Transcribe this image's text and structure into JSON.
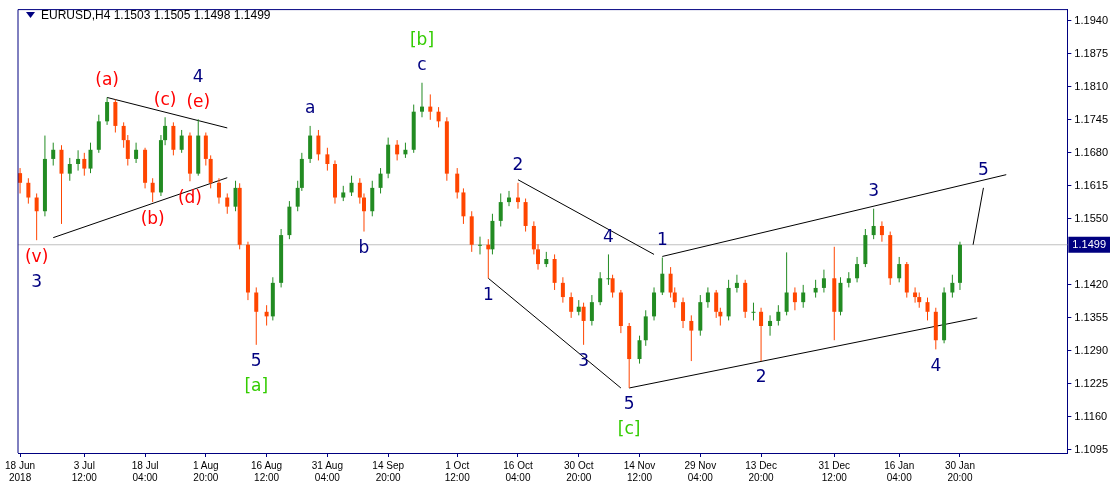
{
  "chart_data": {
    "type": "candlestick",
    "title": "EURUSD,H4  1.1503 1.1505 1.1498 1.1499",
    "x": [
      "2018-06-18",
      "2018-06-20",
      "2018-06-22",
      "2018-06-24",
      "2018-06-26",
      "2018-06-28",
      "2018-06-30",
      "2018-07-02",
      "2018-07-03T12:00",
      "2018-07-05",
      "2018-07-07",
      "2018-07-09",
      "2018-07-11",
      "2018-07-13",
      "2018-07-14",
      "2018-07-16",
      "2018-07-18T04:00",
      "2018-07-20",
      "2018-07-22",
      "2018-07-23",
      "2018-07-25",
      "2018-07-27",
      "2018-07-29",
      "2018-07-31",
      "2018-08-01T20:00",
      "2018-08-03",
      "2018-08-05",
      "2018-08-07",
      "2018-08-09",
      "2018-08-10",
      "2018-08-12",
      "2018-08-14",
      "2018-08-16T12:00",
      "2018-08-18",
      "2018-08-20",
      "2018-08-22",
      "2018-08-24",
      "2018-08-25",
      "2018-08-27",
      "2018-08-29",
      "2018-08-31T04:00",
      "2018-09-02",
      "2018-09-04",
      "2018-09-06",
      "2018-09-08",
      "2018-09-09",
      "2018-09-11",
      "2018-09-13",
      "2018-09-14T20:00",
      "2018-09-17",
      "2018-09-19",
      "2018-09-21",
      "2018-09-23",
      "2018-09-25",
      "2018-09-27",
      "2018-09-29",
      "2018-10-01T12:00",
      "2018-10-03",
      "2018-10-05",
      "2018-10-07",
      "2018-10-09",
      "2018-10-10",
      "2018-10-12",
      "2018-10-14",
      "2018-10-16T04:00",
      "2018-10-18",
      "2018-10-20",
      "2018-10-21",
      "2018-10-23",
      "2018-10-25",
      "2018-10-27",
      "2018-10-29",
      "2018-10-30T20:00",
      "2018-11-01",
      "2018-11-03",
      "2018-11-05",
      "2018-11-07",
      "2018-11-08",
      "2018-11-10",
      "2018-11-12",
      "2018-11-14T12:00",
      "2018-11-16",
      "2018-11-18",
      "2018-11-20",
      "2018-11-22",
      "2018-11-23",
      "2018-11-25",
      "2018-11-27",
      "2018-11-29T04:00",
      "2018-12-01",
      "2018-12-03",
      "2018-12-04",
      "2018-12-06",
      "2018-12-08",
      "2018-12-10",
      "2018-12-12",
      "2018-12-13T20:00",
      "2018-12-16",
      "2018-12-18",
      "2018-12-20",
      "2018-12-22",
      "2018-12-24",
      "2018-12-27",
      "2018-12-29",
      "2018-12-31T12:00",
      "2019-01-02",
      "2019-01-04",
      "2019-01-06",
      "2019-01-08",
      "2019-01-10",
      "2019-01-12",
      "2019-01-14",
      "2019-01-16T04:00",
      "2019-01-18",
      "2019-01-20",
      "2019-01-21",
      "2019-01-23",
      "2019-01-25",
      "2019-01-27",
      "2019-01-29",
      "2019-01-30T20:00"
    ],
    "ohlc": [
      [
        1.164,
        1.165,
        1.16,
        1.1621
      ],
      [
        1.1621,
        1.163,
        1.158,
        1.1592
      ],
      [
        1.1592,
        1.16,
        1.1508,
        1.1565
      ],
      [
        1.1565,
        1.1714,
        1.1555,
        1.1668
      ],
      [
        1.1668,
        1.17,
        1.1655,
        1.1686
      ],
      [
        1.1686,
        1.1695,
        1.154,
        1.1639
      ],
      [
        1.1639,
        1.167,
        1.1625,
        1.1658
      ],
      [
        1.1658,
        1.1685,
        1.1645,
        1.1668
      ],
      [
        1.1668,
        1.168,
        1.1635,
        1.1649
      ],
      [
        1.1649,
        1.17,
        1.164,
        1.1686
      ],
      [
        1.1686,
        1.1755,
        1.168,
        1.1742
      ],
      [
        1.1742,
        1.1789,
        1.1735,
        1.178
      ],
      [
        1.178,
        1.1785,
        1.172,
        1.1733
      ],
      [
        1.1733,
        1.174,
        1.169,
        1.1705
      ],
      [
        1.1705,
        1.1715,
        1.1655,
        1.1668
      ],
      [
        1.1668,
        1.17,
        1.166,
        1.1686
      ],
      [
        1.1686,
        1.169,
        1.161,
        1.1621
      ],
      [
        1.1621,
        1.163,
        1.1583,
        1.1602
      ],
      [
        1.1602,
        1.1715,
        1.1595,
        1.1705
      ],
      [
        1.1705,
        1.175,
        1.1695,
        1.1733
      ],
      [
        1.1733,
        1.174,
        1.1675,
        1.1686
      ],
      [
        1.1686,
        1.1725,
        1.168,
        1.1714
      ],
      [
        1.1714,
        1.172,
        1.1624,
        1.1639
      ],
      [
        1.1639,
        1.1746,
        1.1635,
        1.1714
      ],
      [
        1.1714,
        1.172,
        1.1655,
        1.1668
      ],
      [
        1.1668,
        1.1675,
        1.161,
        1.1621
      ],
      [
        1.1621,
        1.163,
        1.158,
        1.1592
      ],
      [
        1.1592,
        1.16,
        1.156,
        1.1574
      ],
      [
        1.1574,
        1.1625,
        1.1565,
        1.1611
      ],
      [
        1.1611,
        1.162,
        1.149,
        1.1499
      ],
      [
        1.1499,
        1.1505,
        1.139,
        1.1405
      ],
      [
        1.1405,
        1.1415,
        1.1302,
        1.1367
      ],
      [
        1.1367,
        1.138,
        1.134,
        1.1358
      ],
      [
        1.1358,
        1.1435,
        1.135,
        1.1424
      ],
      [
        1.1424,
        1.153,
        1.1415,
        1.1518
      ],
      [
        1.1518,
        1.1585,
        1.151,
        1.1574
      ],
      [
        1.1574,
        1.1625,
        1.1565,
        1.1611
      ],
      [
        1.1611,
        1.168,
        1.1605,
        1.1668
      ],
      [
        1.1668,
        1.1733,
        1.166,
        1.1714
      ],
      [
        1.1714,
        1.1725,
        1.1665,
        1.1677
      ],
      [
        1.1677,
        1.169,
        1.1645,
        1.1658
      ],
      [
        1.1658,
        1.1665,
        1.158,
        1.1592
      ],
      [
        1.1592,
        1.1615,
        1.1585,
        1.1602
      ],
      [
        1.1602,
        1.1635,
        1.1595,
        1.1621
      ],
      [
        1.1621,
        1.163,
        1.158,
        1.1592
      ],
      [
        1.1592,
        1.16,
        1.1525,
        1.1565
      ],
      [
        1.1565,
        1.1625,
        1.1555,
        1.1611
      ],
      [
        1.1611,
        1.165,
        1.16,
        1.1639
      ],
      [
        1.1639,
        1.171,
        1.163,
        1.1696
      ],
      [
        1.1696,
        1.1705,
        1.1665,
        1.1677
      ],
      [
        1.1677,
        1.17,
        1.167,
        1.1686
      ],
      [
        1.1686,
        1.1775,
        1.168,
        1.1761
      ],
      [
        1.1761,
        1.1818,
        1.175,
        1.1771
      ],
      [
        1.1771,
        1.1795,
        1.1745,
        1.1761
      ],
      [
        1.1761,
        1.177,
        1.173,
        1.1742
      ],
      [
        1.1742,
        1.175,
        1.1625,
        1.1639
      ],
      [
        1.1639,
        1.165,
        1.159,
        1.1602
      ],
      [
        1.1602,
        1.161,
        1.154,
        1.1555
      ],
      [
        1.1555,
        1.1565,
        1.1485,
        1.1499
      ],
      [
        1.1499,
        1.1515,
        1.148,
        1.1499
      ],
      [
        1.1499,
        1.151,
        1.1433,
        1.149
      ],
      [
        1.149,
        1.156,
        1.148,
        1.1546
      ],
      [
        1.1546,
        1.16,
        1.1535,
        1.1583
      ],
      [
        1.1583,
        1.1605,
        1.1575,
        1.1592
      ],
      [
        1.1592,
        1.1621,
        1.157,
        1.1583
      ],
      [
        1.1583,
        1.159,
        1.1525,
        1.1536
      ],
      [
        1.1536,
        1.1545,
        1.148,
        1.149
      ],
      [
        1.149,
        1.15,
        1.145,
        1.1461
      ],
      [
        1.1461,
        1.1485,
        1.1455,
        1.1471
      ],
      [
        1.1471,
        1.148,
        1.141,
        1.1424
      ],
      [
        1.1424,
        1.1435,
        1.1385,
        1.1396
      ],
      [
        1.1396,
        1.1405,
        1.1355,
        1.1367
      ],
      [
        1.1367,
        1.139,
        1.136,
        1.1377
      ],
      [
        1.1377,
        1.1385,
        1.1302,
        1.1349
      ],
      [
        1.1349,
        1.14,
        1.134,
        1.1386
      ],
      [
        1.1386,
        1.1445,
        1.138,
        1.1433
      ],
      [
        1.1433,
        1.148,
        1.142,
        1.1433
      ],
      [
        1.1433,
        1.144,
        1.1395,
        1.1405
      ],
      [
        1.1405,
        1.141,
        1.1325,
        1.1339
      ],
      [
        1.1339,
        1.1345,
        1.1217,
        1.1274
      ],
      [
        1.1274,
        1.132,
        1.1265,
        1.1311
      ],
      [
        1.1311,
        1.137,
        1.13,
        1.1358
      ],
      [
        1.1358,
        1.1415,
        1.135,
        1.1405
      ],
      [
        1.1405,
        1.1474,
        1.14,
        1.1442
      ],
      [
        1.1442,
        1.1455,
        1.1395,
        1.1405
      ],
      [
        1.1405,
        1.1415,
        1.1375,
        1.1386
      ],
      [
        1.1386,
        1.1395,
        1.1335,
        1.1349
      ],
      [
        1.1349,
        1.136,
        1.127,
        1.133
      ],
      [
        1.133,
        1.14,
        1.132,
        1.1386
      ],
      [
        1.1386,
        1.1415,
        1.1375,
        1.1405
      ],
      [
        1.1405,
        1.141,
        1.1355,
        1.1367
      ],
      [
        1.1367,
        1.1375,
        1.134,
        1.1358
      ],
      [
        1.1358,
        1.143,
        1.135,
        1.1414
      ],
      [
        1.1414,
        1.144,
        1.1405,
        1.1424
      ],
      [
        1.1424,
        1.143,
        1.1355,
        1.1367
      ],
      [
        1.1367,
        1.1385,
        1.135,
        1.1367
      ],
      [
        1.1367,
        1.1375,
        1.127,
        1.1339
      ],
      [
        1.1339,
        1.136,
        1.132,
        1.1349
      ],
      [
        1.1349,
        1.138,
        1.134,
        1.1367
      ],
      [
        1.1367,
        1.1484,
        1.136,
        1.1405
      ],
      [
        1.1405,
        1.1415,
        1.137,
        1.1386
      ],
      [
        1.1386,
        1.142,
        1.1375,
        1.1405
      ],
      [
        1.1405,
        1.143,
        1.1395,
        1.1414
      ],
      [
        1.1414,
        1.145,
        1.1405,
        1.1433
      ],
      [
        1.1433,
        1.1495,
        1.1311,
        1.1367
      ],
      [
        1.1367,
        1.1435,
        1.136,
        1.1424
      ],
      [
        1.1424,
        1.1445,
        1.1415,
        1.1433
      ],
      [
        1.1433,
        1.1475,
        1.1425,
        1.1461
      ],
      [
        1.1461,
        1.153,
        1.1455,
        1.1518
      ],
      [
        1.1518,
        1.157,
        1.151,
        1.1536
      ],
      [
        1.1536,
        1.1545,
        1.1505,
        1.1518
      ],
      [
        1.1518,
        1.1525,
        1.142,
        1.1433
      ],
      [
        1.1433,
        1.1475,
        1.1425,
        1.1461
      ],
      [
        1.1461,
        1.1465,
        1.1395,
        1.1405
      ],
      [
        1.1405,
        1.1415,
        1.1385,
        1.1396
      ],
      [
        1.1396,
        1.1405,
        1.1375,
        1.1386
      ],
      [
        1.1386,
        1.1395,
        1.135,
        1.1367
      ],
      [
        1.1367,
        1.1375,
        1.1293,
        1.1311
      ],
      [
        1.1311,
        1.1415,
        1.1305,
        1.1405
      ],
      [
        1.1405,
        1.144,
        1.1395,
        1.1424
      ],
      [
        1.1424,
        1.1505,
        1.141,
        1.1499
      ]
    ],
    "colors": [
      "#ff4500",
      "#ff4500",
      "#ff4500",
      "#228b22",
      "#228b22",
      "#ff4500",
      "#228b22",
      "#228b22",
      "#ff4500",
      "#228b22",
      "#228b22",
      "#228b22",
      "#ff4500",
      "#ff4500",
      "#ff4500",
      "#228b22",
      "#ff4500",
      "#ff4500",
      "#228b22",
      "#228b22",
      "#ff4500",
      "#228b22",
      "#ff4500",
      "#228b22",
      "#ff4500",
      "#ff4500",
      "#ff4500",
      "#ff4500",
      "#228b22",
      "#ff4500",
      "#ff4500",
      "#ff4500",
      "#ff4500",
      "#228b22",
      "#228b22",
      "#228b22",
      "#228b22",
      "#228b22",
      "#228b22",
      "#ff4500",
      "#ff4500",
      "#ff4500",
      "#228b22",
      "#228b22",
      "#ff4500",
      "#ff4500",
      "#228b22",
      "#228b22",
      "#228b22",
      "#ff4500",
      "#228b22",
      "#228b22",
      "#228b22",
      "#ff4500",
      "#ff4500",
      "#ff4500",
      "#ff4500",
      "#ff4500",
      "#ff4500",
      "#228b22",
      "#ff4500",
      "#228b22",
      "#228b22",
      "#228b22",
      "#ff4500",
      "#ff4500",
      "#ff4500",
      "#ff4500",
      "#228b22",
      "#ff4500",
      "#ff4500",
      "#ff4500",
      "#228b22",
      "#ff4500",
      "#228b22",
      "#228b22",
      "#228b22",
      "#ff4500",
      "#ff4500",
      "#ff4500",
      "#228b22",
      "#228b22",
      "#228b22",
      "#228b22",
      "#ff4500",
      "#ff4500",
      "#ff4500",
      "#ff4500",
      "#228b22",
      "#228b22",
      "#ff4500",
      "#ff4500",
      "#228b22",
      "#228b22",
      "#ff4500",
      "#228b22",
      "#ff4500",
      "#228b22",
      "#228b22",
      "#228b22",
      "#ff4500",
      "#228b22",
      "#228b22",
      "#228b22",
      "#ff4500",
      "#228b22",
      "#228b22",
      "#228b22",
      "#228b22",
      "#228b22",
      "#ff4500",
      "#ff4500",
      "#228b22",
      "#ff4500",
      "#ff4500",
      "#ff4500",
      "#ff4500",
      "#ff4500",
      "#228b22",
      "#228b22",
      "#228b22"
    ],
    "series": [
      {
        "type": "line",
        "color": "#000000",
        "x": [
          "2018-07-09",
          "2018-08-07"
        ],
        "values": [
          1.1789,
          1.1729
        ]
      },
      {
        "type": "line",
        "color": "#000000",
        "x": [
          "2018-06-26",
          "2018-08-07"
        ],
        "values": [
          1.1513,
          1.1631
        ]
      },
      {
        "type": "line",
        "color": "#000000",
        "x": [
          "2018-10-09",
          "2018-11-10"
        ],
        "values": [
          1.1433,
          1.1217
        ]
      },
      {
        "type": "line",
        "color": "#000000",
        "x": [
          "2018-10-16T04:00",
          "2018-11-18"
        ],
        "values": [
          1.1627,
          1.148
        ]
      },
      {
        "type": "line",
        "color": "#000000",
        "x": [
          "2018-11-20",
          "2019-02-11"
        ],
        "values": [
          1.1476,
          1.1637
        ]
      },
      {
        "type": "line",
        "color": "#000000",
        "x": [
          "2018-11-12",
          "2019-02-04"
        ],
        "values": [
          1.1217,
          1.1355
        ]
      },
      {
        "type": "line",
        "color": "#000000",
        "x": [
          "2019-02-03",
          "2019-02-05T12:00"
        ],
        "values": [
          1.1499,
          1.1611
        ]
      }
    ],
    "xlim": [
      "2018-06-17T12:00",
      "2019-02-25T18:00"
    ],
    "xticks": [
      {
        "value": "2018-06-18",
        "label": "18 Jun 2018"
      },
      {
        "value": "2018-07-03T12:00",
        "label": "3 Jul 12:00"
      },
      {
        "value": "2018-07-18T04:00",
        "label": "18 Jul 04:00"
      },
      {
        "value": "2018-08-01T20:00",
        "label": "1 Aug 20:00"
      },
      {
        "value": "2018-08-16T12:00",
        "label": "16 Aug 12:00"
      },
      {
        "value": "2018-08-31T04:00",
        "label": "31 Aug 04:00"
      },
      {
        "value": "2018-09-14T20:00",
        "label": "14 Sep 20:00"
      },
      {
        "value": "2018-10-01T12:00",
        "label": "1 Oct 12:00"
      },
      {
        "value": "2018-10-16T04:00",
        "label": "16 Oct 04:00"
      },
      {
        "value": "2018-10-30T20:00",
        "label": "30 Oct 20:00"
      },
      {
        "value": "2018-11-14T12:00",
        "label": "14 Nov 12:00"
      },
      {
        "value": "2018-11-29T04:00",
        "label": "29 Nov 04:00"
      },
      {
        "value": "2018-12-13T20:00",
        "label": "13 Dec 20:00"
      },
      {
        "value": "2018-12-31T12:00",
        "label": "31 Dec 12:00"
      },
      {
        "value": "2019-01-16T04:00",
        "label": "16 Jan 04:00"
      },
      {
        "value": "2019-01-30T20:00",
        "label": "30 Jan 20:00"
      }
    ],
    "ylim": [
      1.1089,
      1.1962
    ],
    "yticks": [
      1.1095,
      {
        "value": 1.116,
        "label": "1.1160"
      },
      1.1225,
      {
        "value": 1.129,
        "label": "1.1290"
      },
      1.1355,
      {
        "value": 1.142,
        "label": "1.1420"
      },
      {
        "value": 1.155,
        "label": "1.1550"
      },
      1.1615,
      {
        "value": 1.168,
        "label": "1.1680"
      },
      1.1745,
      {
        "value": 1.181,
        "label": "1.1810"
      },
      1.1875,
      {
        "value": 1.194,
        "label": "1.1940"
      }
    ],
    "ref_lines": [
      {
        "axis": "y",
        "value": 1.1499,
        "label": "1.1499",
        "color": "#c0c0c0"
      }
    ],
    "annotations": [
      {
        "text": "(v)",
        "x": "2018-06-22",
        "y": 1.1508
      },
      {
        "text": "3",
        "x": "2018-06-22",
        "y": 1.1508
      },
      {
        "text": "(a)",
        "x": "2018-07-09",
        "y": 1.1789
      },
      {
        "text": "(b)",
        "x": "2018-07-20",
        "y": 1.1583
      },
      {
        "text": "(c)",
        "x": "2018-07-23",
        "y": 1.175
      },
      {
        "text": "(d)",
        "x": "2018-07-29",
        "y": 1.1624
      },
      {
        "text": "(e)",
        "x": "2018-07-31",
        "y": 1.1746
      },
      {
        "text": "4",
        "x": "2018-07-31",
        "y": 1.1746
      },
      {
        "text": "5",
        "x": "2018-08-14",
        "y": 1.1302
      },
      {
        "text": "[a]",
        "x": "2018-08-14",
        "y": 1.1302
      },
      {
        "text": "a",
        "x": "2018-08-27",
        "y": 1.1733
      },
      {
        "text": "b",
        "x": "2018-09-09",
        "y": 1.1525
      },
      {
        "text": "c",
        "x": "2018-09-23",
        "y": 1.1818
      },
      {
        "text": "[b]",
        "x": "2018-09-23",
        "y": 1.1818
      },
      {
        "text": "1",
        "x": "2018-10-09",
        "y": 1.1433
      },
      {
        "text": "2",
        "x": "2018-10-16T04:00",
        "y": 1.1621
      },
      {
        "text": "3",
        "x": "2018-11-01",
        "y": 1.1302
      },
      {
        "text": "4",
        "x": "2018-11-07",
        "y": 1.148
      },
      {
        "text": "5",
        "x": "2018-11-12",
        "y": 1.1217
      },
      {
        "text": "[c]",
        "x": "2018-11-12",
        "y": 1.1217
      },
      {
        "text": "1",
        "x": "2018-11-20",
        "y": 1.1474
      },
      {
        "text": "2",
        "x": "2018-12-13T20:00",
        "y": 1.127
      },
      {
        "text": "3",
        "x": "2019-01-10",
        "y": 1.157
      },
      {
        "text": "4",
        "x": "2019-01-25",
        "y": 1.1293
      },
      {
        "text": "5",
        "x": "2019-02-05T12:00",
        "y": 1.1611
      }
    ]
  }
}
